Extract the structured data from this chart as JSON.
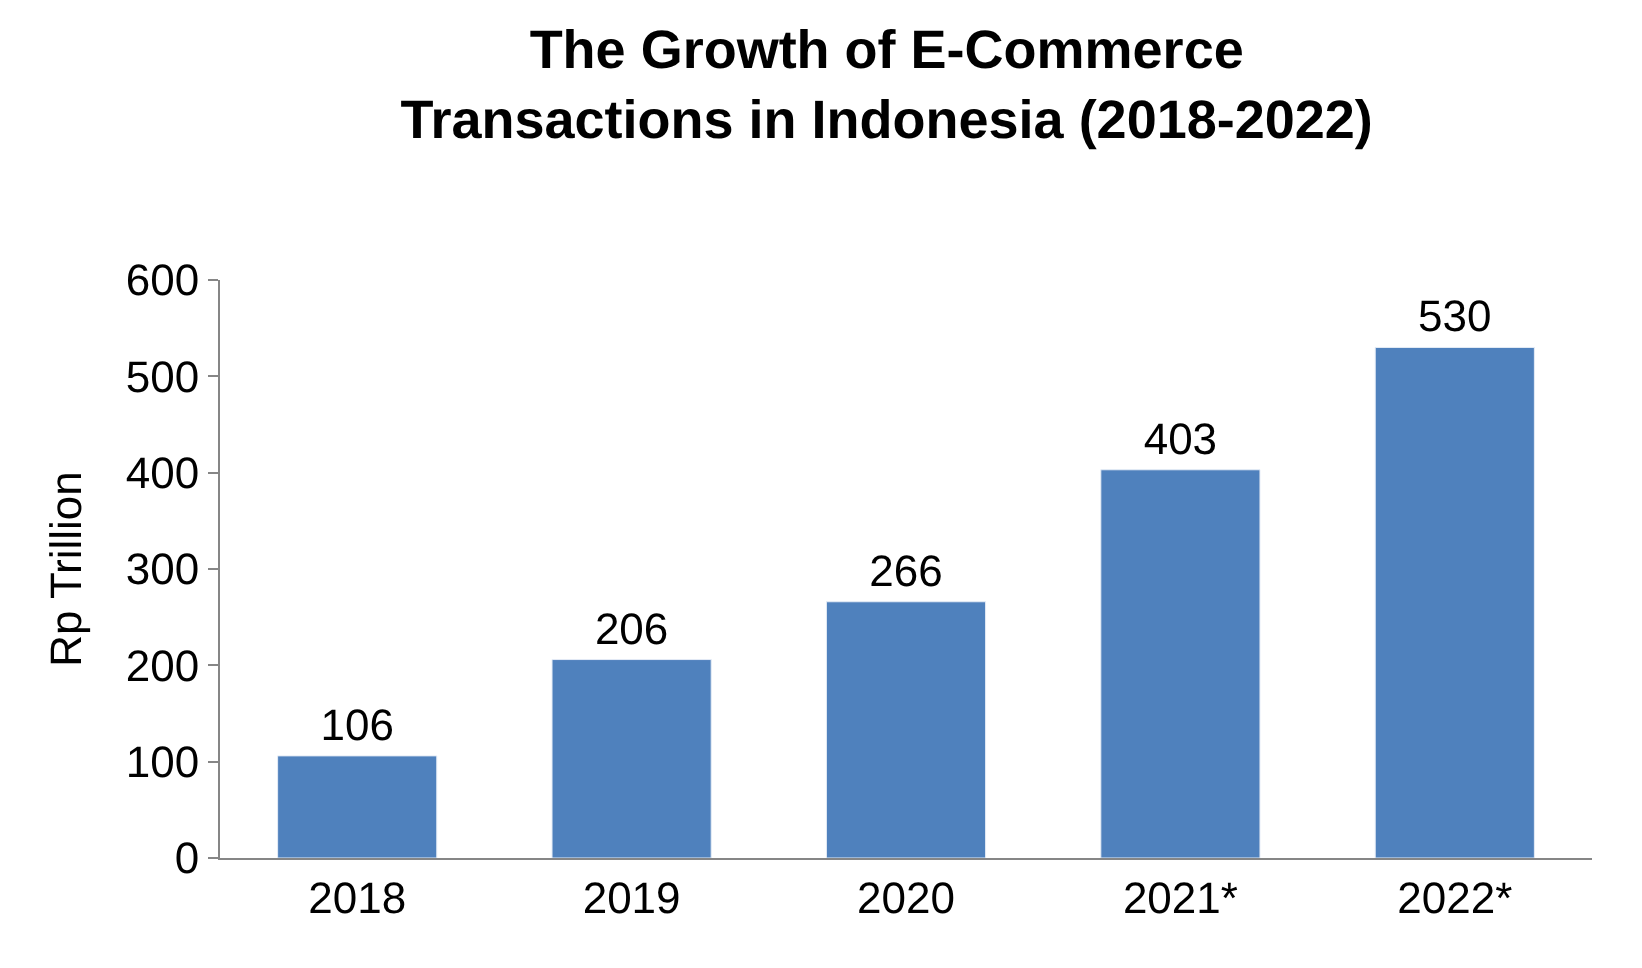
{
  "chart_data": {
    "type": "bar",
    "title": "The Growth of E-Commerce\nTransactions in Indonesia (2018-2022)",
    "ylabel": "Rp Trillion",
    "categories": [
      "2018",
      "2019",
      "2020",
      "2021*",
      "2022*"
    ],
    "values": [
      106,
      206,
      266,
      403,
      530
    ],
    "color": "#4f81bd",
    "ylim": [
      0,
      600
    ],
    "yticks": [
      0,
      100,
      200,
      300,
      400,
      500,
      600
    ],
    "data_labels": true,
    "legend": false
  }
}
